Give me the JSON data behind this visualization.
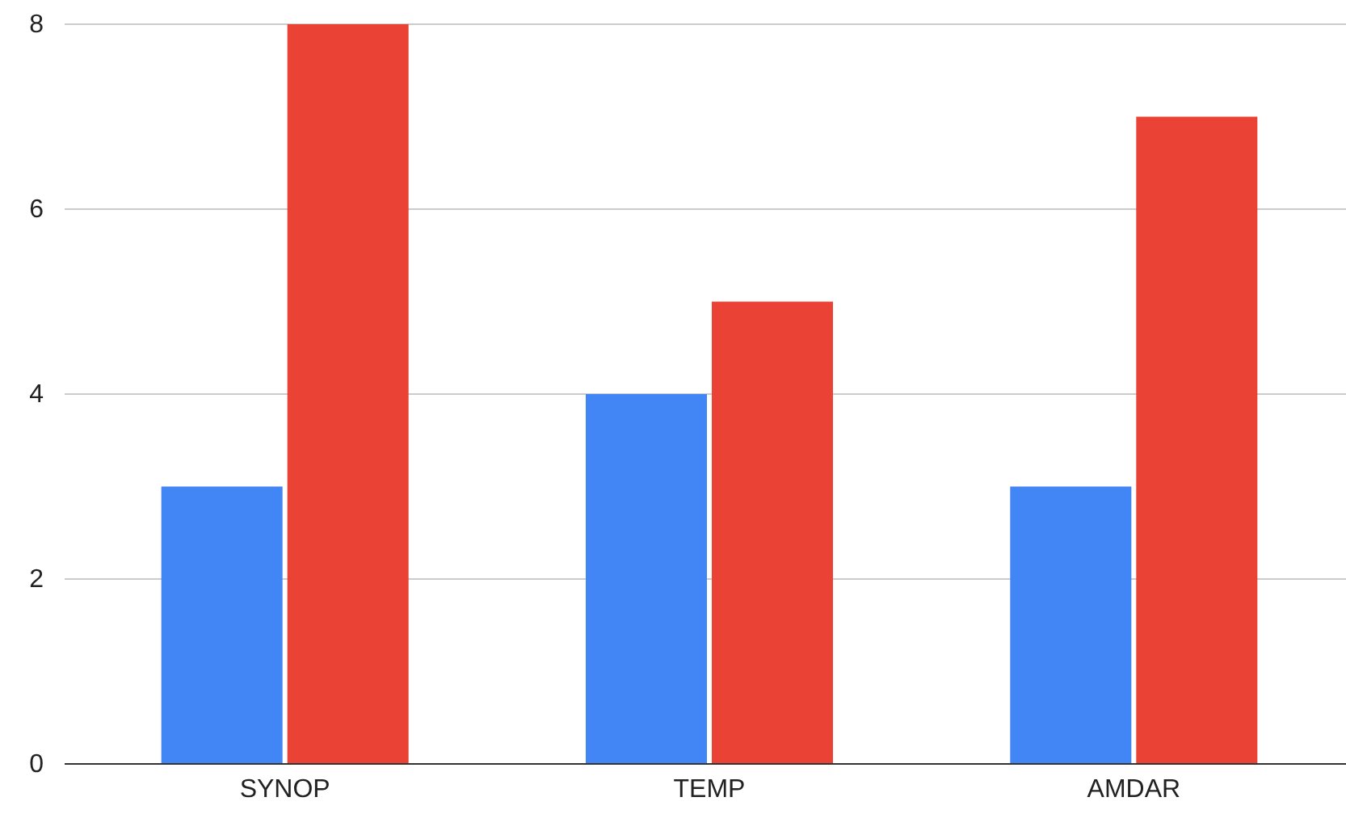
{
  "chart_data": {
    "type": "bar",
    "categories": [
      "SYNOP",
      "TEMP",
      "AMDAR"
    ],
    "series": [
      {
        "color": "#4285f4",
        "values": [
          3,
          4,
          3
        ]
      },
      {
        "color": "#ea4335",
        "values": [
          8,
          5,
          7
        ]
      }
    ],
    "ylim": [
      0,
      8
    ],
    "yticks": [
      0,
      2,
      4,
      6,
      8
    ],
    "grid": "y"
  }
}
